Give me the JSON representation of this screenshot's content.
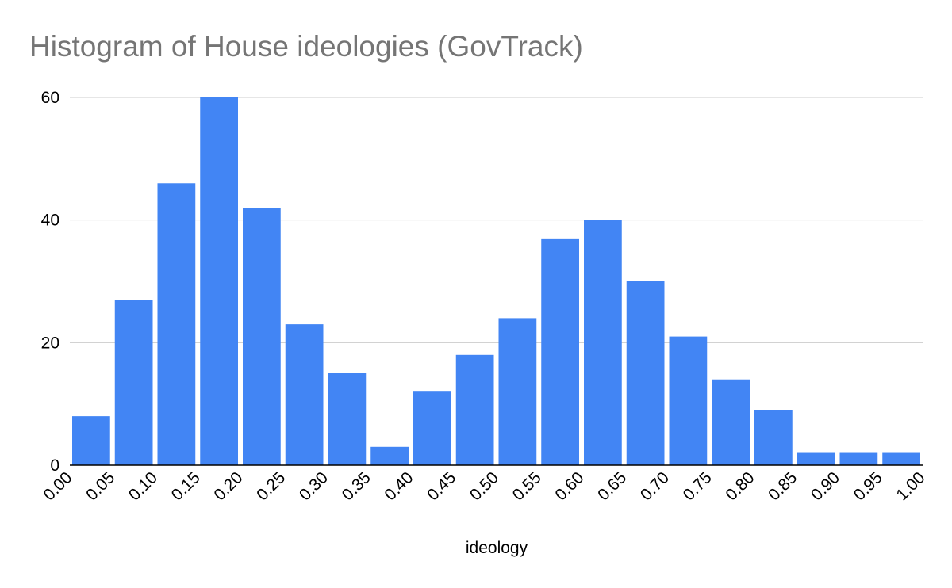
{
  "chart_data": {
    "type": "bar",
    "title": "Histogram of House ideologies (GovTrack)",
    "xlabel": "ideology",
    "ylabel": "",
    "bin_edges": [
      0.0,
      0.05,
      0.1,
      0.15,
      0.2,
      0.25,
      0.3,
      0.35,
      0.4,
      0.45,
      0.5,
      0.55,
      0.6,
      0.65,
      0.7,
      0.75,
      0.8,
      0.85,
      0.9,
      0.95,
      1.0
    ],
    "x_tick_labels": [
      "0.00",
      "0.05",
      "0.10",
      "0.15",
      "0.20",
      "0.25",
      "0.30",
      "0.35",
      "0.40",
      "0.45",
      "0.50",
      "0.55",
      "0.60",
      "0.65",
      "0.70",
      "0.75",
      "0.80",
      "0.85",
      "0.90",
      "0.95",
      "1.00"
    ],
    "values": [
      8,
      27,
      46,
      60,
      42,
      23,
      15,
      3,
      12,
      18,
      24,
      37,
      40,
      30,
      21,
      14,
      9,
      2,
      2,
      2
    ],
    "y_ticks": [
      0,
      20,
      40,
      60
    ],
    "ylim": [
      0,
      60
    ],
    "xlim": [
      0,
      1
    ],
    "grid": true,
    "bar_color": "#4285f4",
    "grid_color": "#cccccc",
    "axis_color": "#000000",
    "title_color": "#757575"
  }
}
